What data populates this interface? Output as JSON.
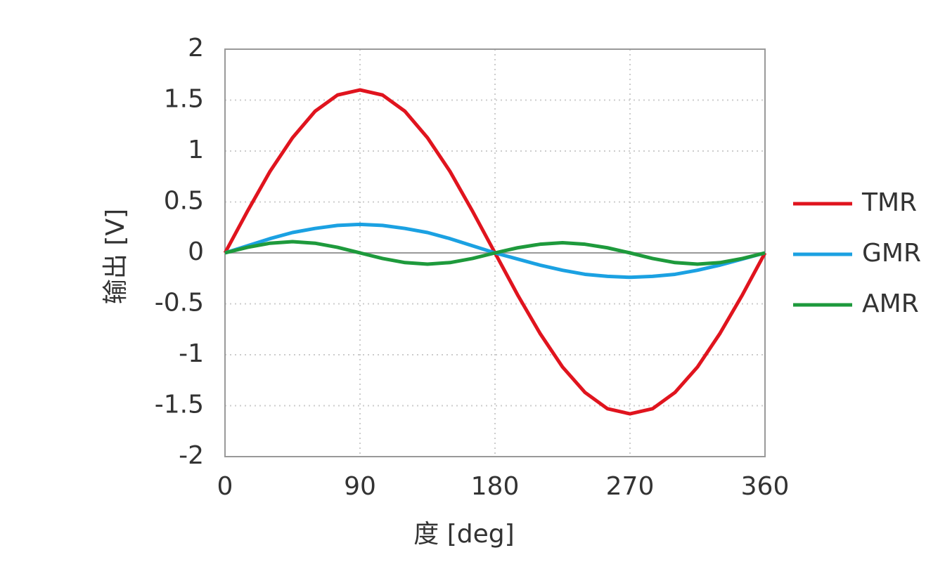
{
  "chart_data": {
    "type": "line",
    "x_label": "度 [deg]",
    "y_label": "输出 [V]",
    "x": [
      0,
      15,
      30,
      45,
      60,
      75,
      90,
      105,
      120,
      135,
      150,
      165,
      180,
      195,
      210,
      225,
      240,
      255,
      270,
      285,
      300,
      315,
      330,
      345,
      360
    ],
    "series": [
      {
        "name": "TMR",
        "color": "#e0141e",
        "values": [
          0,
          0.41,
          0.8,
          1.13,
          1.39,
          1.55,
          1.6,
          1.55,
          1.39,
          1.13,
          0.8,
          0.41,
          0,
          -0.41,
          -0.79,
          -1.12,
          -1.37,
          -1.53,
          -1.58,
          -1.53,
          -1.37,
          -1.12,
          -0.79,
          -0.41,
          0
        ]
      },
      {
        "name": "GMR",
        "color": "#1ba1e2",
        "values": [
          0,
          0.07,
          0.14,
          0.2,
          0.24,
          0.27,
          0.28,
          0.27,
          0.24,
          0.2,
          0.14,
          0.07,
          0,
          -0.06,
          -0.12,
          -0.17,
          -0.21,
          -0.23,
          -0.24,
          -0.23,
          -0.21,
          -0.17,
          -0.12,
          -0.06,
          0
        ]
      },
      {
        "name": "AMR",
        "color": "#1e9a3c",
        "values": [
          0,
          0.055,
          0.095,
          0.11,
          0.095,
          0.055,
          0,
          -0.055,
          -0.095,
          -0.11,
          -0.095,
          -0.055,
          0,
          0.05,
          0.085,
          0.1,
          0.085,
          0.05,
          0,
          -0.055,
          -0.095,
          -0.11,
          -0.095,
          -0.055,
          0
        ]
      }
    ],
    "xlim": [
      0,
      360
    ],
    "xticks": [
      0,
      90,
      180,
      270,
      360
    ],
    "ylim": [
      -2,
      2
    ],
    "yticks": [
      2,
      1.5,
      1,
      0.5,
      0,
      -0.5,
      -1,
      -1.5,
      -2
    ],
    "grid": true,
    "legend": "right"
  }
}
